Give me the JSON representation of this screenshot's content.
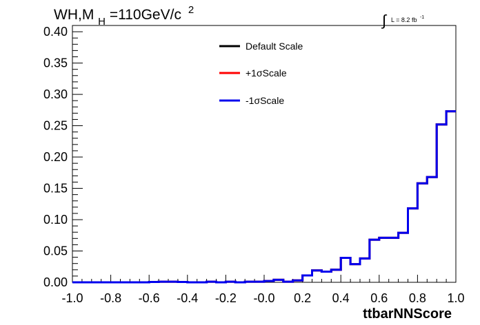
{
  "chart_data": {
    "type": "line",
    "title": {
      "main": "WH,M",
      "sub": "H",
      "rest": "=110GeV/c",
      "sup": "2"
    },
    "lumi": {
      "symbol": "∫",
      "text": "L = 8.2 fb",
      "sup": "-1"
    },
    "xlabel": "ttbarNNScore",
    "ylabel": "",
    "xlim": [
      -1.0,
      1.0
    ],
    "ylim": [
      0,
      0.41
    ],
    "grid": false,
    "legend_position": "top-center",
    "x_ticks": [
      "-1.0",
      "-0.8",
      "-0.6",
      "-0.4",
      "-0.2",
      "-0.0",
      "0.2",
      "0.4",
      "0.6",
      "0.8",
      "1.0"
    ],
    "y_ticks": [
      "0.00",
      "0.05",
      "0.10",
      "0.15",
      "0.20",
      "0.25",
      "0.30",
      "0.35",
      "0.40"
    ],
    "bin_edges": [
      -1.0,
      -0.95,
      -0.9,
      -0.85,
      -0.8,
      -0.75,
      -0.7,
      -0.65,
      -0.6,
      -0.55,
      -0.5,
      -0.45,
      -0.4,
      -0.35,
      -0.3,
      -0.25,
      -0.2,
      -0.15,
      -0.1,
      -0.05,
      0.0,
      0.05,
      0.1,
      0.15,
      0.2,
      0.25,
      0.3,
      0.35,
      0.4,
      0.45,
      0.5,
      0.55,
      0.6,
      0.65,
      0.7,
      0.75,
      0.8,
      0.85,
      0.9,
      0.95,
      1.0
    ],
    "series": [
      {
        "name": "Default Scale",
        "color": "#000000",
        "values": [
          0.0,
          0.0,
          0.0,
          0.0,
          0.0,
          0.0,
          0.0,
          0.0,
          0.0005,
          0.001,
          0.001,
          0.0005,
          0.0,
          0.0,
          0.001,
          0.0,
          0.001,
          0.0,
          0.001,
          0.001,
          0.002,
          0.004,
          0.001,
          0.003,
          0.011,
          0.019,
          0.017,
          0.02,
          0.039,
          0.029,
          0.038,
          0.068,
          0.071,
          0.071,
          0.079,
          0.118,
          0.158,
          0.168,
          0.252,
          0.273
        ]
      },
      {
        "name": "+1σScale",
        "color": "#ff0000",
        "values": [
          0.0,
          0.0,
          0.0,
          0.0,
          0.0,
          0.0,
          0.0,
          0.0,
          0.0005,
          0.001,
          0.001,
          0.0005,
          0.0,
          0.0,
          0.001,
          0.0,
          0.001,
          0.0,
          0.001,
          0.001,
          0.002,
          0.004,
          0.001,
          0.003,
          0.011,
          0.019,
          0.017,
          0.02,
          0.039,
          0.029,
          0.038,
          0.068,
          0.071,
          0.071,
          0.079,
          0.118,
          0.158,
          0.168,
          0.252,
          0.273
        ]
      },
      {
        "name": "-1σScale",
        "color": "#0000ee",
        "values": [
          0.0,
          0.0,
          0.0,
          0.0,
          0.0,
          0.0,
          0.0,
          0.0,
          0.0005,
          0.001,
          0.001,
          0.0005,
          0.0,
          0.0,
          0.001,
          0.0,
          0.001,
          0.0,
          0.001,
          0.001,
          0.002,
          0.004,
          0.001,
          0.003,
          0.011,
          0.019,
          0.017,
          0.02,
          0.039,
          0.029,
          0.038,
          0.068,
          0.071,
          0.071,
          0.079,
          0.118,
          0.158,
          0.168,
          0.252,
          0.273
        ]
      }
    ]
  }
}
